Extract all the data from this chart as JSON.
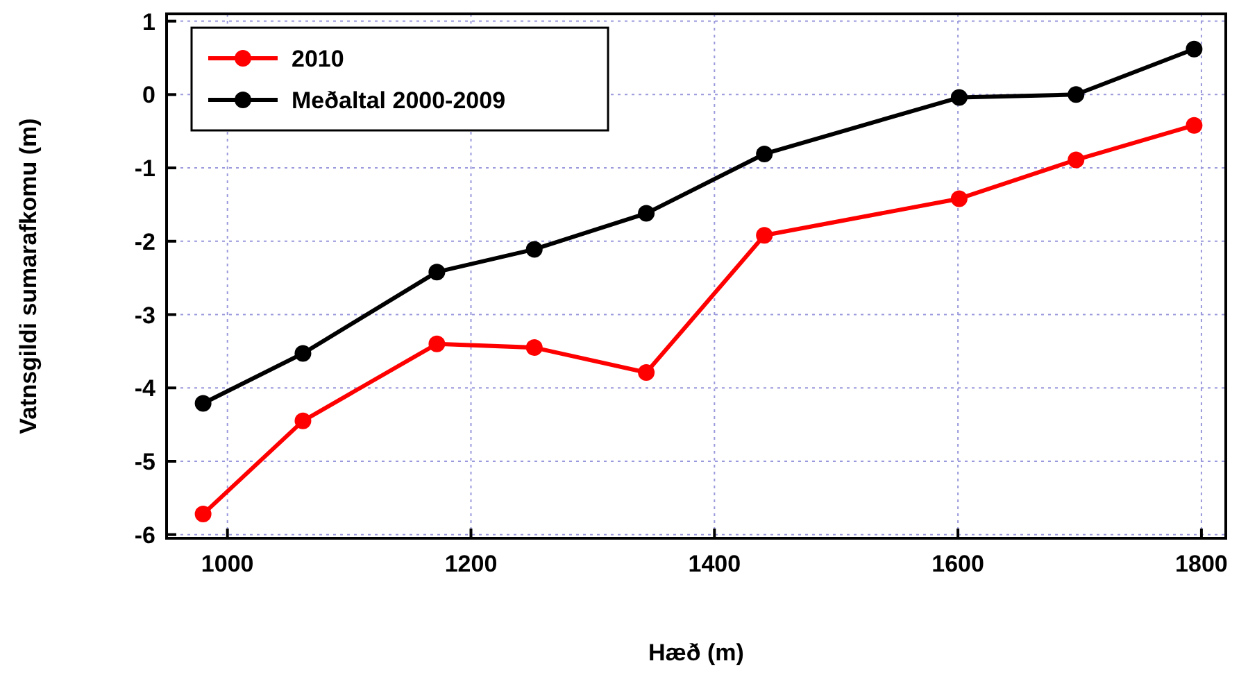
{
  "chart_data": {
    "type": "line",
    "xlabel": "Hæð (m)",
    "ylabel": "Vatnsgildi sumarafkomu (m)",
    "series": [
      {
        "name": "2010",
        "color": "#ff0000",
        "x": [
          980,
          1062,
          1172,
          1252,
          1344,
          1441,
          1601,
          1697,
          1794
        ],
        "values": [
          -5.72,
          -4.45,
          -3.4,
          -3.45,
          -3.79,
          -1.92,
          -1.42,
          -0.89,
          -0.42
        ]
      },
      {
        "name": "Meðaltal 2000-2009",
        "color": "#000000",
        "x": [
          980,
          1062,
          1172,
          1252,
          1344,
          1441,
          1601,
          1697,
          1794
        ],
        "values": [
          -4.21,
          -3.53,
          -2.42,
          -2.11,
          -1.62,
          -0.81,
          -0.04,
          0,
          0.62
        ]
      }
    ],
    "xlim": [
      950,
      1820
    ],
    "xticks": [
      1000,
      1200,
      1400,
      1600,
      1800
    ],
    "ylim": [
      -6.05,
      1.1
    ],
    "yticks": [
      -6,
      -5,
      -4,
      -3,
      -2,
      -1,
      0,
      1
    ],
    "grid": true,
    "legend": "top left",
    "marker": "circle",
    "line_style": "solid"
  }
}
